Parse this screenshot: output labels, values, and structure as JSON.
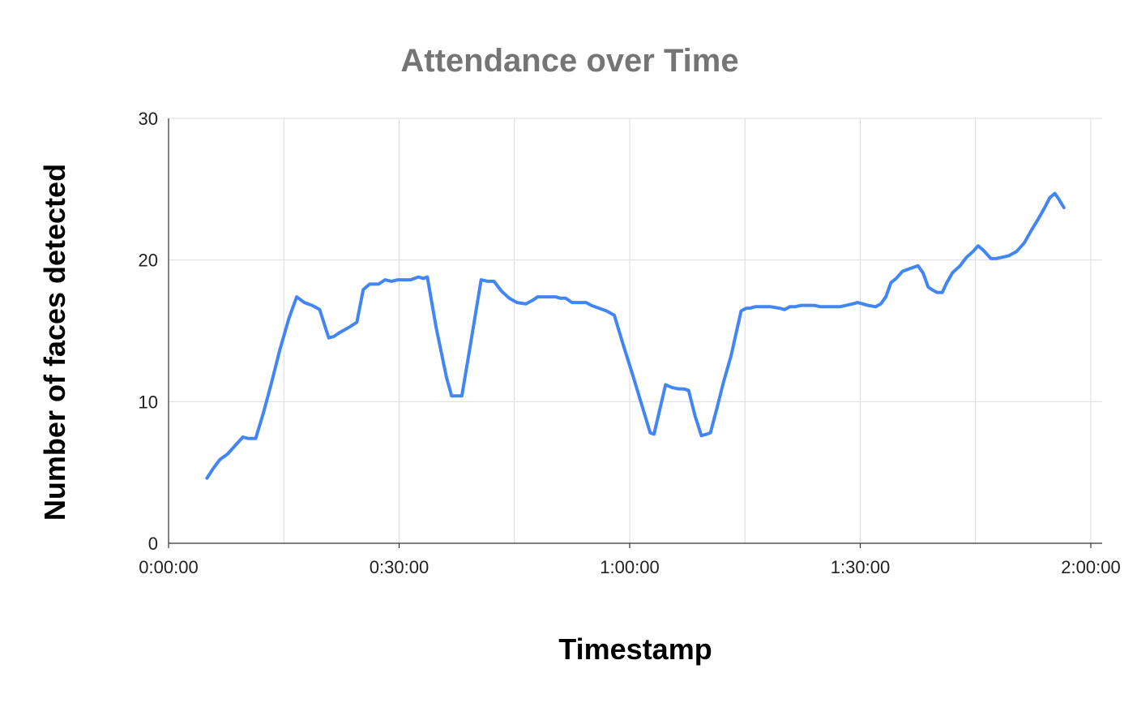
{
  "chart_data": {
    "type": "line",
    "title": "Attendance over Time",
    "xlabel": "Timestamp",
    "ylabel": "Number of faces detected",
    "x_unit": "seconds",
    "xlim": [
      0,
      7200
    ],
    "ylim": [
      0,
      30
    ],
    "x_ticks": [
      {
        "value": 0,
        "label": "0:00:00"
      },
      {
        "value": 1800,
        "label": "0:30:00"
      },
      {
        "value": 3600,
        "label": "1:00:00"
      },
      {
        "value": 5400,
        "label": "1:30:00"
      },
      {
        "value": 7200,
        "label": "2:00:00"
      }
    ],
    "y_ticks": [
      {
        "value": 0,
        "label": "0"
      },
      {
        "value": 10,
        "label": "10"
      },
      {
        "value": 20,
        "label": "20"
      },
      {
        "value": 30,
        "label": "30"
      }
    ],
    "grid": true,
    "legend": "none",
    "series": [
      {
        "color": "#4285F4",
        "points": [
          [
            300,
            4.6
          ],
          [
            350,
            5.3
          ],
          [
            400,
            5.9
          ],
          [
            460,
            6.3
          ],
          [
            520,
            6.9
          ],
          [
            580,
            7.5
          ],
          [
            620,
            7.4
          ],
          [
            680,
            7.4
          ],
          [
            740,
            9.2
          ],
          [
            800,
            11.2
          ],
          [
            870,
            13.7
          ],
          [
            940,
            15.9
          ],
          [
            1000,
            17.4
          ],
          [
            1060,
            17.0
          ],
          [
            1120,
            16.8
          ],
          [
            1180,
            16.5
          ],
          [
            1250,
            14.5
          ],
          [
            1290,
            14.6
          ],
          [
            1340,
            14.9
          ],
          [
            1400,
            15.2
          ],
          [
            1470,
            15.6
          ],
          [
            1520,
            17.9
          ],
          [
            1570,
            18.3
          ],
          [
            1640,
            18.3
          ],
          [
            1690,
            18.6
          ],
          [
            1740,
            18.5
          ],
          [
            1790,
            18.6
          ],
          [
            1840,
            18.6
          ],
          [
            1890,
            18.6
          ],
          [
            1950,
            18.8
          ],
          [
            1990,
            18.7
          ],
          [
            2020,
            18.8
          ],
          [
            2090,
            15.2
          ],
          [
            2170,
            11.7
          ],
          [
            2210,
            10.4
          ],
          [
            2250,
            10.4
          ],
          [
            2290,
            10.4
          ],
          [
            2360,
            14.2
          ],
          [
            2440,
            18.6
          ],
          [
            2490,
            18.5
          ],
          [
            2540,
            18.5
          ],
          [
            2600,
            17.8
          ],
          [
            2660,
            17.3
          ],
          [
            2720,
            17.0
          ],
          [
            2790,
            16.9
          ],
          [
            2850,
            17.2
          ],
          [
            2880,
            17.4
          ],
          [
            2930,
            17.4
          ],
          [
            2990,
            17.4
          ],
          [
            3020,
            17.4
          ],
          [
            3060,
            17.3
          ],
          [
            3100,
            17.3
          ],
          [
            3150,
            17.0
          ],
          [
            3200,
            17.0
          ],
          [
            3260,
            17.0
          ],
          [
            3300,
            16.8
          ],
          [
            3360,
            16.6
          ],
          [
            3420,
            16.4
          ],
          [
            3480,
            16.1
          ],
          [
            3550,
            14.0
          ],
          [
            3630,
            11.7
          ],
          [
            3710,
            9.3
          ],
          [
            3760,
            7.8
          ],
          [
            3790,
            7.7
          ],
          [
            3880,
            11.2
          ],
          [
            3930,
            11.0
          ],
          [
            3980,
            10.9
          ],
          [
            4020,
            10.9
          ],
          [
            4060,
            10.8
          ],
          [
            4110,
            9.0
          ],
          [
            4160,
            7.6
          ],
          [
            4200,
            7.7
          ],
          [
            4230,
            7.8
          ],
          [
            4280,
            9.5
          ],
          [
            4330,
            11.3
          ],
          [
            4390,
            13.2
          ],
          [
            4470,
            16.4
          ],
          [
            4510,
            16.6
          ],
          [
            4540,
            16.6
          ],
          [
            4580,
            16.7
          ],
          [
            4640,
            16.7
          ],
          [
            4700,
            16.7
          ],
          [
            4770,
            16.6
          ],
          [
            4810,
            16.5
          ],
          [
            4850,
            16.7
          ],
          [
            4890,
            16.7
          ],
          [
            4940,
            16.8
          ],
          [
            4980,
            16.8
          ],
          [
            5040,
            16.8
          ],
          [
            5090,
            16.7
          ],
          [
            5130,
            16.7
          ],
          [
            5190,
            16.7
          ],
          [
            5240,
            16.7
          ],
          [
            5290,
            16.8
          ],
          [
            5340,
            16.9
          ],
          [
            5380,
            17.0
          ],
          [
            5420,
            16.9
          ],
          [
            5460,
            16.8
          ],
          [
            5520,
            16.7
          ],
          [
            5560,
            16.9
          ],
          [
            5600,
            17.4
          ],
          [
            5640,
            18.4
          ],
          [
            5680,
            18.7
          ],
          [
            5730,
            19.2
          ],
          [
            5790,
            19.4
          ],
          [
            5850,
            19.6
          ],
          [
            5890,
            19.1
          ],
          [
            5930,
            18.1
          ],
          [
            5960,
            17.9
          ],
          [
            6000,
            17.7
          ],
          [
            6040,
            17.7
          ],
          [
            6070,
            18.3
          ],
          [
            6120,
            19.1
          ],
          [
            6180,
            19.6
          ],
          [
            6230,
            20.2
          ],
          [
            6280,
            20.6
          ],
          [
            6320,
            21.0
          ],
          [
            6360,
            20.7
          ],
          [
            6420,
            20.1
          ],
          [
            6460,
            20.1
          ],
          [
            6510,
            20.2
          ],
          [
            6560,
            20.3
          ],
          [
            6620,
            20.6
          ],
          [
            6680,
            21.2
          ],
          [
            6730,
            22.0
          ],
          [
            6790,
            22.9
          ],
          [
            6840,
            23.7
          ],
          [
            6880,
            24.4
          ],
          [
            6920,
            24.7
          ],
          [
            6950,
            24.3
          ],
          [
            6990,
            23.7
          ]
        ]
      }
    ]
  }
}
